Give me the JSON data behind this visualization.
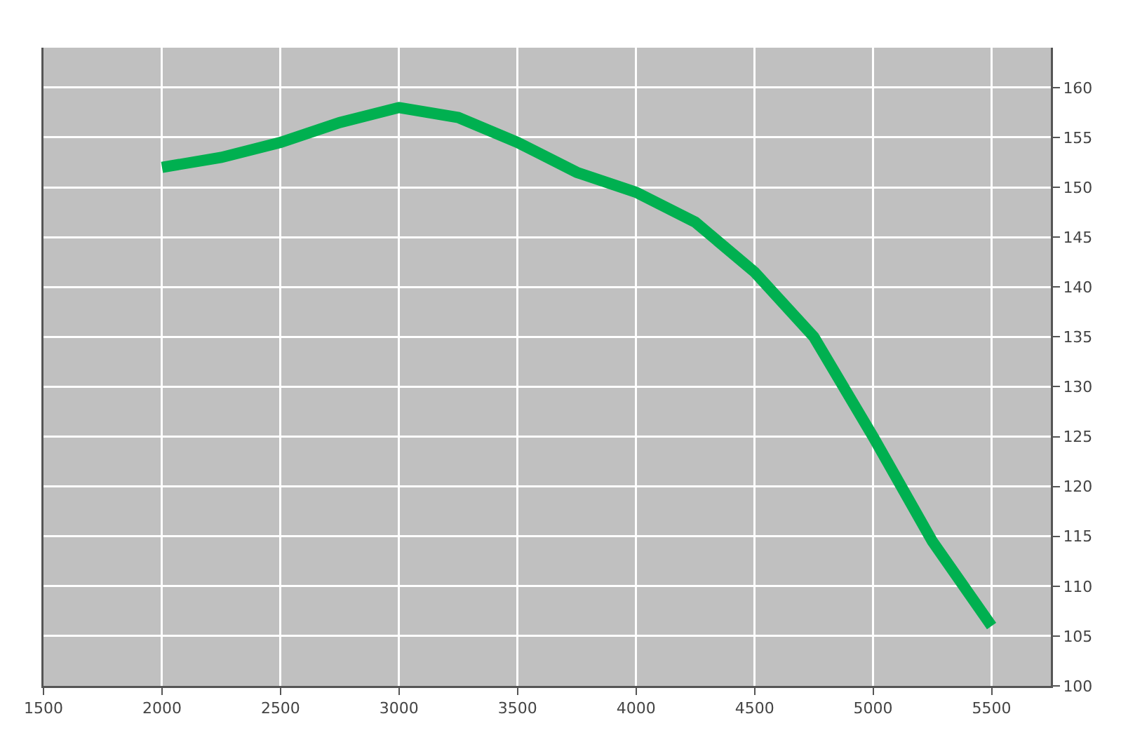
{
  "chart_data": {
    "type": "line",
    "x": [
      2000,
      2250,
      2500,
      2750,
      3000,
      3250,
      3500,
      3750,
      4000,
      4250,
      4500,
      4750,
      5000,
      5250,
      5500
    ],
    "series": [
      {
        "color": "#00b050",
        "values": [
          152,
          153,
          154.5,
          156.5,
          158,
          157,
          154.5,
          151.5,
          149.5,
          146.5,
          141.5,
          135,
          125,
          114.5,
          106
        ]
      }
    ],
    "xlim": [
      1500,
      5750
    ],
    "xticks": [
      1500,
      2000,
      2500,
      3000,
      3500,
      4000,
      4500,
      5000,
      5500
    ],
    "ylim": [
      100,
      164
    ],
    "yticks": [
      100,
      105,
      110,
      115,
      120,
      125,
      130,
      135,
      140,
      145,
      150,
      155,
      160
    ],
    "grid": true,
    "line_style": "solid"
  }
}
